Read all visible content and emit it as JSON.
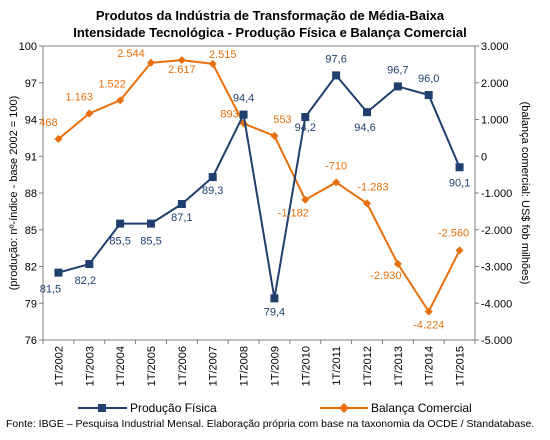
{
  "chart_data": {
    "type": "line",
    "title": [
      "Produtos da Indústria de Transformação de Média-Baixa",
      "Intensidade Tecnológica - Produção Física e Balança Comercial"
    ],
    "categories": [
      "1T/2002",
      "1T/2003",
      "1T/2004",
      "1T/2005",
      "1T/2006",
      "1T/2007",
      "1T/2008",
      "1T/2009",
      "1T/2010",
      "1T/2011",
      "1T/2012",
      "1T/2013",
      "1T/2014",
      "1T/2015"
    ],
    "ylabel": "(produção: nº-índice - base 2002 = 100)",
    "y2label": "(balança comercial: US$ fob milhões)",
    "ylim": [
      76,
      100
    ],
    "yticks": [
      "76",
      "79",
      "82",
      "85",
      "88",
      "91",
      "94",
      "97",
      "100"
    ],
    "ytick_values": [
      76,
      79,
      82,
      85,
      88,
      91,
      94,
      97,
      100
    ],
    "y2lim": [
      -5000,
      3000
    ],
    "y2ticks": [
      "-5.000",
      "-4.000",
      "-3.000",
      "-2.000",
      "-1.000",
      "0",
      "1.000",
      "2.000",
      "3.000"
    ],
    "y2tick_values": [
      -5000,
      -4000,
      -3000,
      -2000,
      -1000,
      0,
      1000,
      2000,
      3000
    ],
    "grid": false,
    "legend_position": "bottom",
    "series": [
      {
        "name": "Produção Física",
        "axis": "left",
        "color": "#1f3f6e",
        "marker": "square",
        "values": [
          81.5,
          82.2,
          85.5,
          85.5,
          87.1,
          89.3,
          94.4,
          79.4,
          94.2,
          97.6,
          94.6,
          96.7,
          96.0,
          90.1
        ],
        "labels": [
          "81,5",
          "82,2",
          "85,5",
          "85,5",
          "87,1",
          "89,3",
          "94,4",
          "79,4",
          "94,2",
          "97,6",
          "94,6",
          "96,7",
          "96,0",
          "90,1"
        ]
      },
      {
        "name": "Balança Comercial",
        "axis": "right",
        "color": "#e8700c",
        "marker": "diamond",
        "values": [
          468,
          1163,
          1522,
          2544,
          2617,
          2515,
          893,
          553,
          -1182,
          -710,
          -1283,
          -2930,
          -4224,
          -2560
        ],
        "labels": [
          "468",
          "1.163",
          "1.522",
          "2.544",
          "2.617",
          "2.515",
          "893",
          "553",
          "-1.182",
          "-710",
          "-1.283",
          "-2.930",
          "-4.224",
          "-2.560"
        ]
      }
    ]
  },
  "source": "Fonte: IBGE – Pesquisa Industrial Mensal. Elaboração própria com base na taxonomia da OCDE / Standatabase."
}
